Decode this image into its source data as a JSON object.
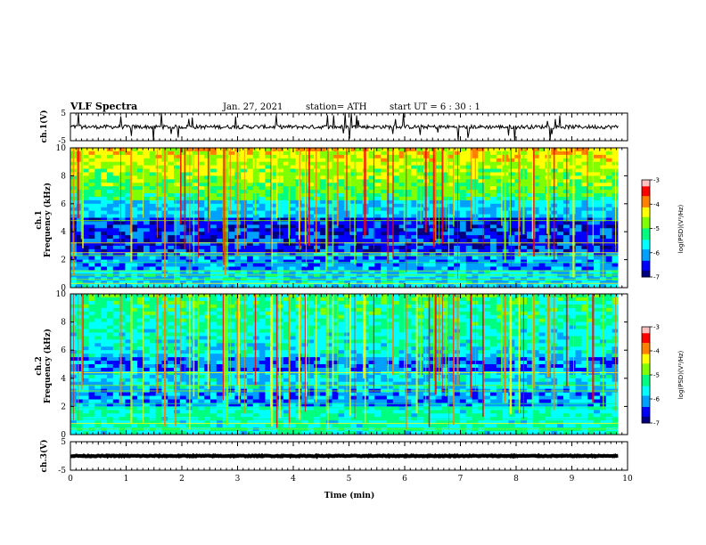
{
  "chart_data": {
    "type": "heatmap",
    "title": "VLF Spectra",
    "date": "Jan. 27, 2021",
    "station": "station= ATH",
    "start_time": "start UT =  6 : 30 : 1",
    "xlabel": "Time (min)",
    "xlim": [
      0,
      10
    ],
    "x_ticks": [
      "0",
      "1",
      "2",
      "3",
      "4",
      "5",
      "6",
      "7",
      "8",
      "9",
      "10"
    ],
    "data_end_min": 9.83,
    "panels": [
      {
        "kind": "waveform",
        "ylabel": "ch.1(V)",
        "ylim": [
          -5,
          5
        ],
        "y_ticks": [
          "5",
          "-5"
        ],
        "baseline": 0
      },
      {
        "kind": "spectrogram",
        "ylabel_line1": "ch.1",
        "ylabel_line2": "Frequency (kHz)",
        "ylim": [
          0,
          10
        ],
        "y_ticks": [
          "0",
          "2",
          "4",
          "6",
          "8",
          "10"
        ],
        "colorbar": {
          "label": "log(PSD)(V²/Hz)",
          "range": [
            -7,
            -3
          ],
          "ticks": [
            "-3",
            "-4",
            "-5",
            "-6",
            "-7"
          ]
        }
      },
      {
        "kind": "spectrogram",
        "ylabel_line1": "ch.2",
        "ylabel_line2": "Frequency (kHz)",
        "ylim": [
          0,
          10
        ],
        "y_ticks": [
          "0",
          "2",
          "4",
          "6",
          "8",
          "10"
        ],
        "colorbar": {
          "label": "log(PSD)(V²/Hz)",
          "range": [
            -7,
            -3
          ],
          "ticks": [
            "-3",
            "-4",
            "-5",
            "-6",
            "-7"
          ]
        }
      },
      {
        "kind": "waveform",
        "ylabel": "ch.3(V)",
        "ylim": [
          -5,
          5
        ],
        "y_ticks": [
          "5",
          "-5"
        ],
        "baseline": 0
      }
    ]
  },
  "colormap": [
    "#000080",
    "#0000ff",
    "#00a0ff",
    "#00ffff",
    "#00ff80",
    "#80ff00",
    "#ffff00",
    "#ff8000",
    "#ff0000",
    "#ffc0c0"
  ]
}
